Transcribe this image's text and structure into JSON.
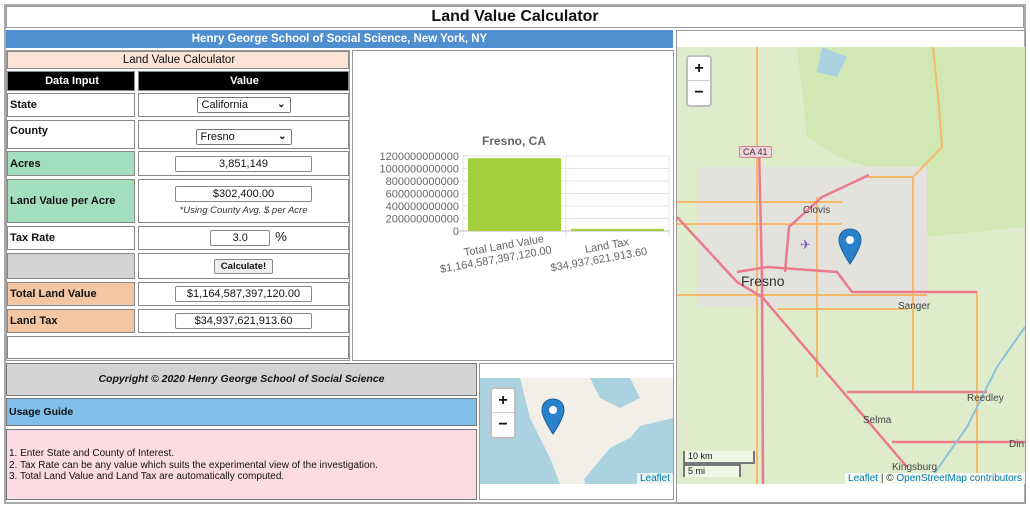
{
  "title": "Land Value Calculator",
  "org_header": "Henry George School of Social Science, New York, NY",
  "calculator": {
    "heading": "Land Value Calculator",
    "col_input": "Data Input",
    "col_value": "Value",
    "state_label": "State",
    "state_value": "California",
    "county_label": "County",
    "county_value": "Fresno",
    "acres_label": "Acres",
    "acres_value": "3,851,149",
    "lvpa_label": "Land Value per Acre",
    "lvpa_value": "$302,400.00",
    "lvpa_note": "*Using County Avg. $ per Acre",
    "tax_label": "Tax Rate",
    "tax_value": "3.0",
    "tax_unit": "%",
    "calculate_label": "Calculate!",
    "total_label": "Total Land Value",
    "total_value": "$1,164,587,397,120.00",
    "landtax_label": "Land Tax",
    "landtax_value": "$34,937,621,913.60"
  },
  "chart_data": {
    "type": "bar",
    "title": "Fresno, CA",
    "categories": [
      "Total Land Value",
      "Land Tax"
    ],
    "category_sublabels": [
      "$1,164,587,397,120.00",
      "$34,937,621,913.60"
    ],
    "values": [
      1164587397120.0,
      34937621913.6
    ],
    "ylim": [
      0,
      1200000000000
    ],
    "yticks": [
      "1200000000000",
      "1000000000000",
      "800000000000",
      "600000000000",
      "400000000000",
      "200000000000",
      "0"
    ],
    "color": "#a3cf3c",
    "grid": true
  },
  "copyright": "Copyright © 2020 Henry George School of Social Science",
  "usage": {
    "heading": "Usage Guide",
    "steps": [
      "1. Enter State and County of Interest.",
      "2. Tax Rate can be any value which suits the experimental view of the investigation.",
      "3. Total Land Value and Land Tax are automatically computed."
    ]
  },
  "small_map": {
    "zoom_in": "+",
    "zoom_out": "−",
    "attribution": "Leaflet"
  },
  "big_map": {
    "zoom_in": "+",
    "zoom_out": "−",
    "labels": [
      "CA 41",
      "Clovis",
      "Fresno",
      "Sanger",
      "Reedley",
      "Selma",
      "Kingsburg",
      "Din"
    ],
    "scale_km": "10 km",
    "scale_mi": "5 mi",
    "attribution_leaflet": "Leaflet",
    "attribution_sep": " | © ",
    "attribution_osm": "OpenStreetMap contributors"
  },
  "colors": {
    "header_blue": "#4f8fcf",
    "green": "#a3dfbd",
    "orange": "#f4c7a4",
    "pink_head": "#fde3d6",
    "usage_blue": "#7fbfea",
    "usage_pink": "#fddbe3",
    "gray": "#d3d3d3"
  }
}
